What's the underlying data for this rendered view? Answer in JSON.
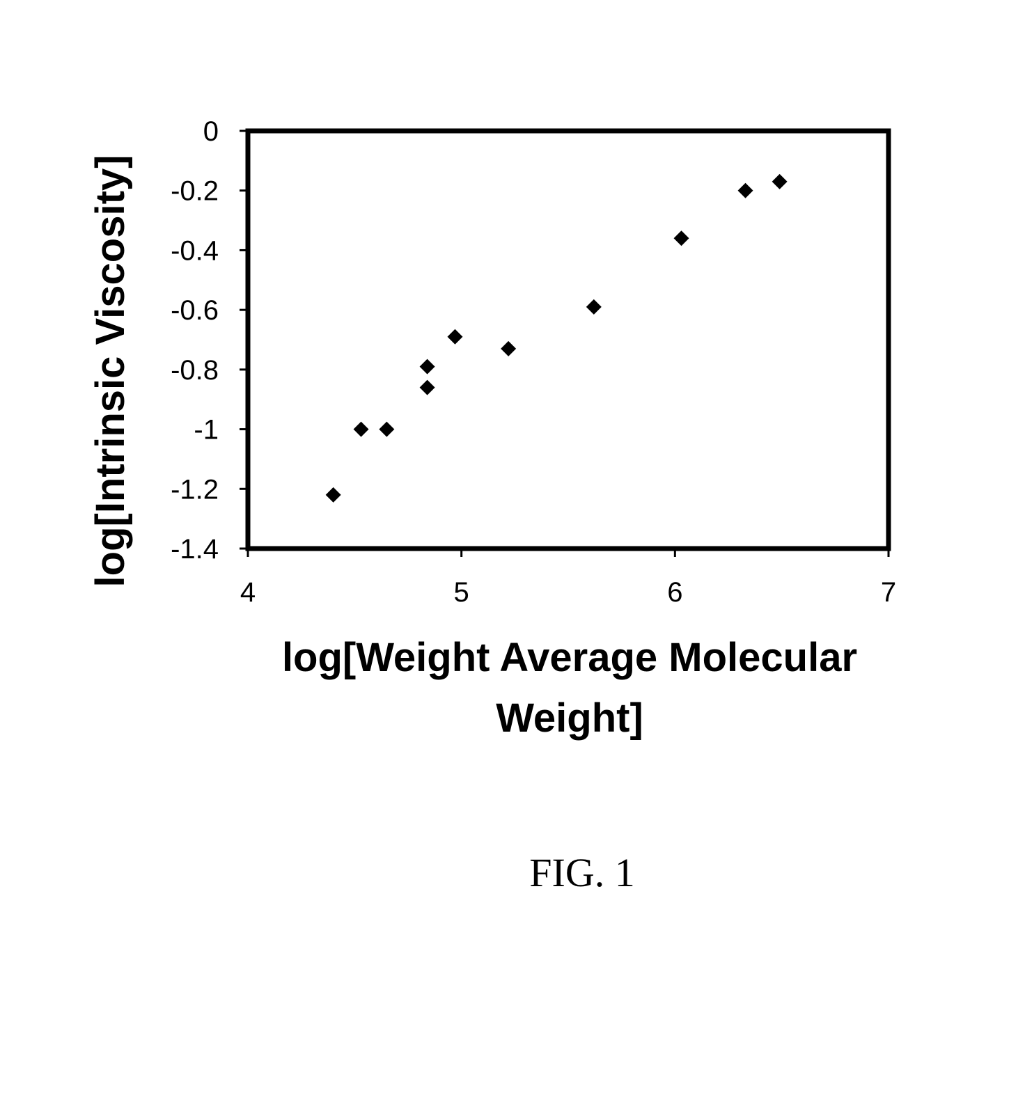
{
  "chart_data": {
    "type": "scatter",
    "xlabel": "log[Weight Average Molecular Weight]",
    "ylabel": "log[Intrinsic Viscosity]",
    "xlim": [
      4,
      7
    ],
    "ylim": [
      -1.4,
      0
    ],
    "x_ticks": [
      "4",
      "5",
      "6",
      "7"
    ],
    "y_ticks": [
      "0",
      "-0.2",
      "-0.4",
      "-0.6",
      "-0.8",
      "-1",
      "-1.2",
      "-1.4"
    ],
    "grid": false,
    "legend": "none",
    "marker": "diamond",
    "marker_color": "#000000",
    "series": [
      {
        "x": [
          4.4,
          4.53,
          4.65,
          4.84,
          4.84,
          4.97,
          5.22,
          5.62,
          6.03,
          6.33,
          6.49
        ],
        "y": [
          -1.22,
          -1.0,
          -1.0,
          -0.79,
          -0.86,
          -0.69,
          -0.73,
          -0.59,
          -0.36,
          -0.2,
          -0.17
        ]
      }
    ]
  },
  "figure": {
    "caption": "FIG. 1",
    "xlabel_lines": [
      "log[Weight Average Molecular",
      "Weight]"
    ]
  }
}
